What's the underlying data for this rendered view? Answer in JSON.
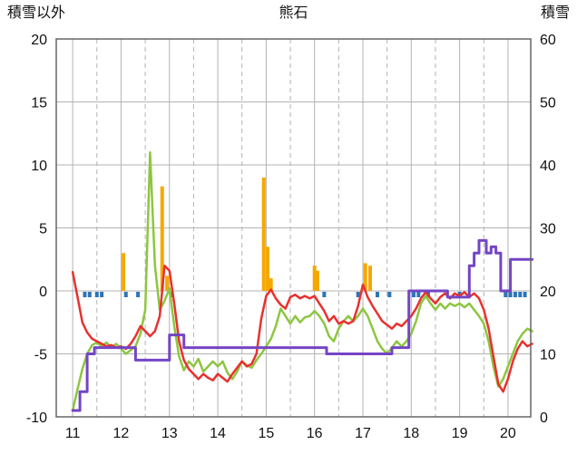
{
  "header": {
    "left_axis_title": "積雪以外",
    "title": "熊石",
    "right_axis_title": "積雪"
  },
  "chart_data": {
    "type": "line",
    "title": "熊石",
    "grid": true,
    "legend": "none",
    "colors": {
      "red_line": "#e8312f",
      "green_line": "#8dc63f",
      "purple_line": "#7445c4",
      "orange_bars": "#f5a800",
      "blue_marks": "#2e75b6",
      "grid_line": "#b3b3b3",
      "border": "#666666"
    },
    "left_axis": {
      "label": "積雪以外",
      "min": -10,
      "max": 20,
      "ticks": [
        20,
        15,
        10,
        5,
        0,
        -5,
        -10
      ],
      "gridlines": [
        15,
        10,
        5,
        0,
        -5
      ]
    },
    "right_axis": {
      "label": "積雪",
      "min": 0,
      "max": 60,
      "ticks": [
        60,
        50,
        40,
        30,
        20,
        10,
        0
      ]
    },
    "x_axis": {
      "min": 10.66,
      "max": 20.47,
      "ticks": [
        11,
        12,
        13,
        14,
        15,
        16,
        17,
        18,
        19,
        20
      ],
      "minor_ticks": [
        11.5,
        12.5,
        13.5,
        14.5,
        15.5,
        16.5,
        17.5,
        18.5,
        19.5
      ]
    },
    "series": [
      {
        "name": "red-line",
        "axis": "left",
        "x_start": 11.0,
        "x_step": 0.1,
        "values": [
          1.5,
          -0.5,
          -2.5,
          -3.3,
          -3.8,
          -4.0,
          -4.2,
          -4.4,
          -4.3,
          -4.5,
          -4.4,
          -4.6,
          -4.2,
          -3.6,
          -2.8,
          -3.2,
          -3.6,
          -3.2,
          -2.0,
          2.0,
          1.6,
          -1.0,
          -4.0,
          -5.5,
          -6.2,
          -6.6,
          -7.0,
          -6.6,
          -6.9,
          -7.1,
          -6.6,
          -6.9,
          -7.2,
          -6.6,
          -6.1,
          -5.6,
          -6.0,
          -5.8,
          -5.0,
          -2.2,
          -0.4,
          0.1,
          -0.6,
          -1.1,
          -1.4,
          -0.5,
          -0.3,
          -0.6,
          -0.4,
          -0.6,
          -0.4,
          -1.0,
          -1.6,
          -2.4,
          -2.0,
          -2.6,
          -2.4,
          -2.6,
          -2.4,
          -1.2,
          0.5,
          -0.5,
          -1.2,
          -1.8,
          -2.4,
          -2.7,
          -3.0,
          -2.6,
          -2.8,
          -2.4,
          -2.0,
          -1.4,
          -0.6,
          -0.1,
          -0.6,
          -1.0,
          -0.5,
          -0.2,
          -0.6,
          -0.2,
          -0.4,
          -0.1,
          -0.5,
          -0.2,
          -0.6,
          -1.5,
          -3.0,
          -5.2,
          -7.4,
          -8.0,
          -7.0,
          -5.6,
          -4.6,
          -4.0,
          -4.4,
          -4.2
        ]
      },
      {
        "name": "green-line",
        "axis": "left",
        "x_start": 11.0,
        "x_step": 0.1,
        "values": [
          -9.5,
          -7.8,
          -6.2,
          -5.0,
          -4.3,
          -4.1,
          -4.4,
          -4.1,
          -4.5,
          -4.2,
          -4.6,
          -5.0,
          -4.7,
          -4.4,
          -3.4,
          -1.5,
          11.0,
          2.0,
          -1.5,
          -0.8,
          0.2,
          -2.8,
          -5.2,
          -6.3,
          -5.6,
          -6.0,
          -5.4,
          -6.4,
          -6.0,
          -5.6,
          -6.0,
          -5.6,
          -6.5,
          -7.0,
          -6.4,
          -5.6,
          -5.9,
          -6.1,
          -5.5,
          -5.0,
          -4.4,
          -3.8,
          -2.8,
          -1.4,
          -2.0,
          -2.6,
          -2.0,
          -2.5,
          -2.1,
          -2.0,
          -1.6,
          -2.0,
          -2.6,
          -3.6,
          -4.0,
          -3.0,
          -2.4,
          -2.0,
          -2.4,
          -2.0,
          -1.4,
          -2.0,
          -3.0,
          -4.0,
          -4.6,
          -5.0,
          -4.5,
          -4.0,
          -4.4,
          -4.0,
          -3.4,
          -2.4,
          -1.0,
          -0.4,
          -1.0,
          -1.5,
          -1.0,
          -1.4,
          -1.0,
          -1.2,
          -1.0,
          -1.3,
          -1.0,
          -1.5,
          -2.0,
          -2.6,
          -4.0,
          -6.0,
          -7.6,
          -7.0,
          -6.0,
          -5.0,
          -4.0,
          -3.4,
          -3.0,
          -3.2
        ]
      }
    ],
    "snow_depth_steps": {
      "name": "purple-step-line",
      "axis": "right",
      "x_end": 20.5,
      "points": [
        [
          11.0,
          1
        ],
        [
          11.15,
          4
        ],
        [
          11.3,
          10
        ],
        [
          11.45,
          11
        ],
        [
          12.3,
          9
        ],
        [
          13.0,
          13
        ],
        [
          13.3,
          11
        ],
        [
          16.25,
          10
        ],
        [
          17.6,
          11
        ],
        [
          17.95,
          20
        ],
        [
          18.75,
          19
        ],
        [
          19.2,
          24
        ],
        [
          19.3,
          26
        ],
        [
          19.4,
          28
        ],
        [
          19.55,
          26
        ],
        [
          19.65,
          27
        ],
        [
          19.75,
          26
        ],
        [
          19.85,
          20
        ],
        [
          20.05,
          25
        ]
      ]
    },
    "precip_bars": {
      "name": "orange-bars",
      "axis": "left",
      "bars": [
        {
          "x": 12.05,
          "value": 3.0
        },
        {
          "x": 12.85,
          "value": 8.3
        },
        {
          "x": 12.95,
          "value": 1.2
        },
        {
          "x": 14.95,
          "value": 9.0
        },
        {
          "x": 15.03,
          "value": 3.5
        },
        {
          "x": 15.1,
          "value": 1.0
        },
        {
          "x": 16.0,
          "value": 2.0
        },
        {
          "x": 16.06,
          "value": 1.6
        },
        {
          "x": 17.05,
          "value": 2.2
        },
        {
          "x": 17.15,
          "value": 2.0
        }
      ]
    },
    "blue_marks": {
      "name": "blue-tick-marks",
      "x": [
        11.25,
        11.35,
        11.5,
        11.6,
        12.1,
        12.35,
        13.05,
        16.2,
        16.9,
        17.3,
        17.55,
        18.05,
        18.15,
        18.35,
        19.0,
        19.95,
        20.05,
        20.15,
        20.25,
        20.35
      ]
    }
  }
}
